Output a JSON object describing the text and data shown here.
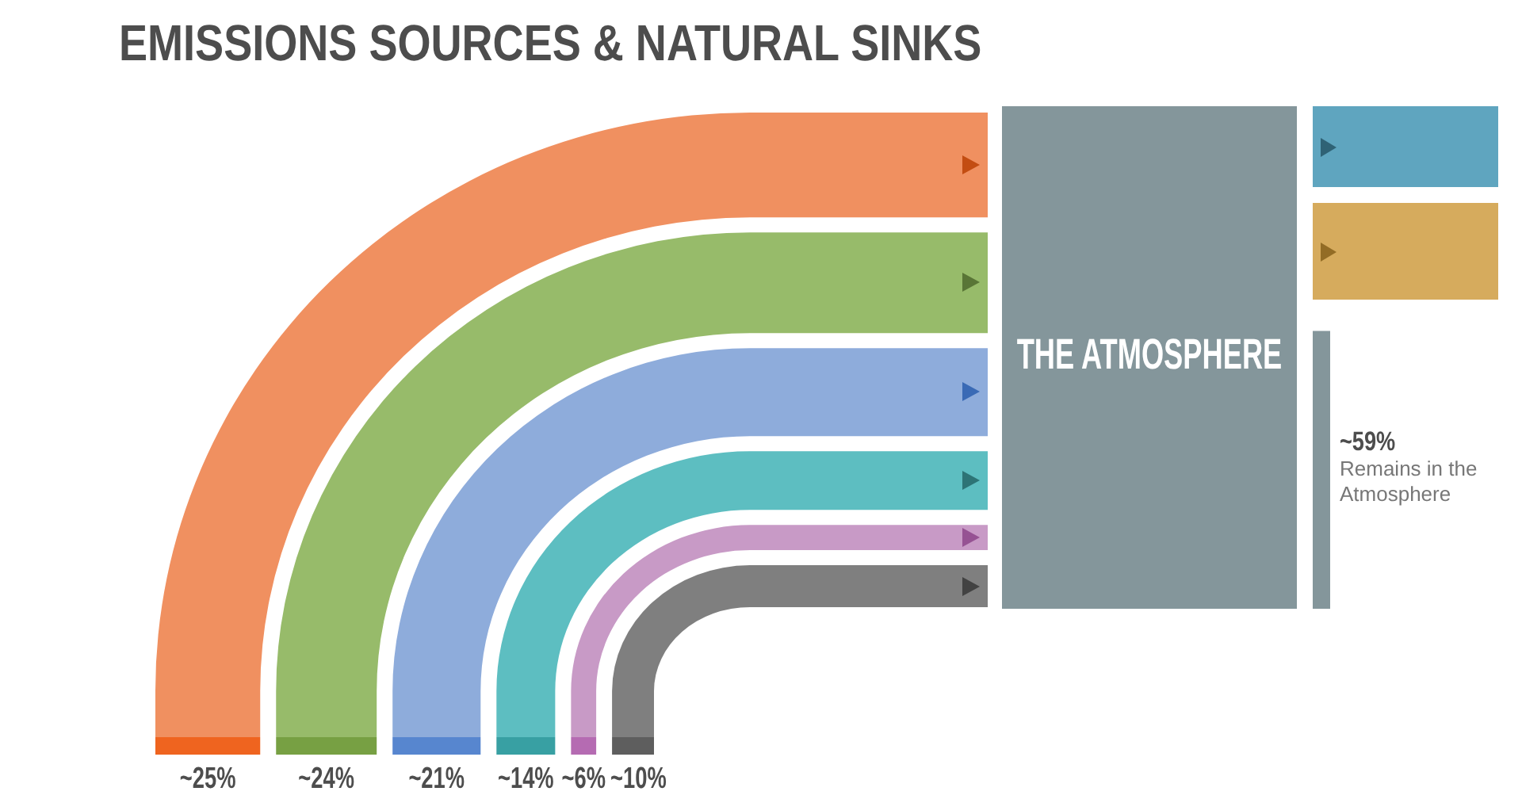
{
  "chart_data": [
    {
      "type": "other",
      "title": "EMISSIONS SOURCES & NATURAL SINKS",
      "values": [
        25,
        24,
        21,
        14,
        6,
        10
      ],
      "colors": [
        "#f09060",
        "#97bb6a",
        "#8eacdb",
        "#5dbec1",
        "#c89ac6",
        "#7f7f7f"
      ],
      "value_labels": [
        "~25%",
        "~24%",
        "~21%",
        "~14%",
        "~6%",
        "~10%"
      ]
    },
    {
      "type": "other",
      "values": [
        59
      ],
      "colors": [
        "#84969b"
      ],
      "value_labels": [
        "~59%"
      ],
      "annotations": [
        "THE ATMOSPHERE",
        "Remains in the Atmosphere"
      ]
    }
  ]
}
